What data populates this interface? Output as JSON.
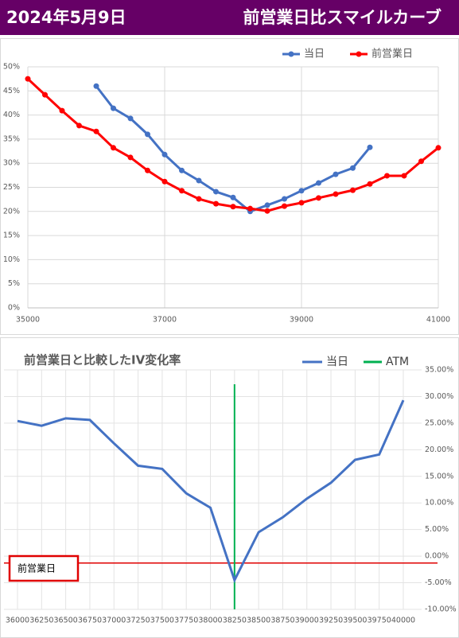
{
  "header": {
    "date": "2024年5月9日",
    "title": "前営業日比スマイルカーブ"
  },
  "chart_data": [
    {
      "type": "line",
      "xlim": [
        35000,
        41000
      ],
      "xticks": [
        35000,
        37000,
        39000,
        41000
      ],
      "ylim": [
        0,
        50
      ],
      "yticks": [
        {
          "value": 0,
          "label": "0%"
        },
        {
          "value": 5,
          "label": "5%"
        },
        {
          "value": 10,
          "label": "10%"
        },
        {
          "value": 15,
          "label": "15%"
        },
        {
          "value": 20,
          "label": "20%"
        },
        {
          "value": 25,
          "label": "25%"
        },
        {
          "value": 30,
          "label": "30%"
        },
        {
          "value": 35,
          "label": "35%"
        },
        {
          "value": 40,
          "label": "40%"
        },
        {
          "value": 45,
          "label": "45%"
        },
        {
          "value": 50,
          "label": "50%"
        }
      ],
      "grid": true,
      "legend": "top-right",
      "series": [
        {
          "name": "当日",
          "color": "#4472c4",
          "x": [
            36000,
            36250,
            36500,
            36750,
            37000,
            37250,
            37500,
            37750,
            38000,
            38250,
            38500,
            38750,
            39000,
            39250,
            39500,
            39750,
            40000
          ],
          "values": [
            46.0,
            41.4,
            39.3,
            36.0,
            31.8,
            28.5,
            26.4,
            24.1,
            22.9,
            20.0,
            21.3,
            22.6,
            24.3,
            25.9,
            27.7,
            29.0,
            33.3
          ]
        },
        {
          "name": "前営業日",
          "color": "#ff0000",
          "x": [
            35000,
            35250,
            35500,
            35750,
            36000,
            36250,
            36500,
            36750,
            37000,
            37250,
            37500,
            37750,
            38000,
            38250,
            38500,
            38750,
            39000,
            39250,
            39500,
            39750,
            40000,
            40250,
            40500,
            40750,
            41000
          ],
          "values": [
            47.5,
            44.2,
            40.9,
            37.8,
            36.6,
            33.2,
            31.2,
            28.5,
            26.2,
            24.3,
            22.6,
            21.6,
            21.0,
            20.6,
            20.1,
            21.1,
            21.8,
            22.8,
            23.6,
            24.4,
            25.7,
            27.4,
            27.4,
            30.4,
            33.2
          ]
        }
      ]
    },
    {
      "type": "line",
      "title": "前営業日と比較したIV変化率",
      "categories": [
        36000,
        36250,
        36500,
        36750,
        37000,
        37250,
        37500,
        37750,
        38000,
        38250,
        38500,
        38750,
        39000,
        39250,
        39500,
        39750,
        40000
      ],
      "ylim": [
        -10,
        35
      ],
      "yticks": [
        {
          "value": -10,
          "label": "-10.00%"
        },
        {
          "value": -5,
          "label": "-5.00%"
        },
        {
          "value": 0,
          "label": "0.00%"
        },
        {
          "value": 5,
          "label": "5.00%"
        },
        {
          "value": 10,
          "label": "10.00%"
        },
        {
          "value": 15,
          "label": "15.00%"
        },
        {
          "value": 20,
          "label": "20.00%"
        },
        {
          "value": 25,
          "label": "25.00%"
        },
        {
          "value": 30,
          "label": "30.00%"
        },
        {
          "value": 35,
          "label": "35.00%"
        }
      ],
      "grid": true,
      "legend": "top-right",
      "series": [
        {
          "name": "当日",
          "color": "#4472c4",
          "values": [
            25.4,
            24.5,
            25.9,
            25.6,
            21.2,
            17.0,
            16.4,
            11.8,
            9.1,
            -4.5,
            4.5,
            7.3,
            10.8,
            13.8,
            18.1,
            19.1,
            29.3
          ]
        }
      ],
      "atm": {
        "name": "ATM",
        "color": "#00b050",
        "x": 38250
      },
      "reference_line": {
        "label": "前営業日",
        "value": -1.3,
        "color": "#e00000"
      }
    }
  ]
}
